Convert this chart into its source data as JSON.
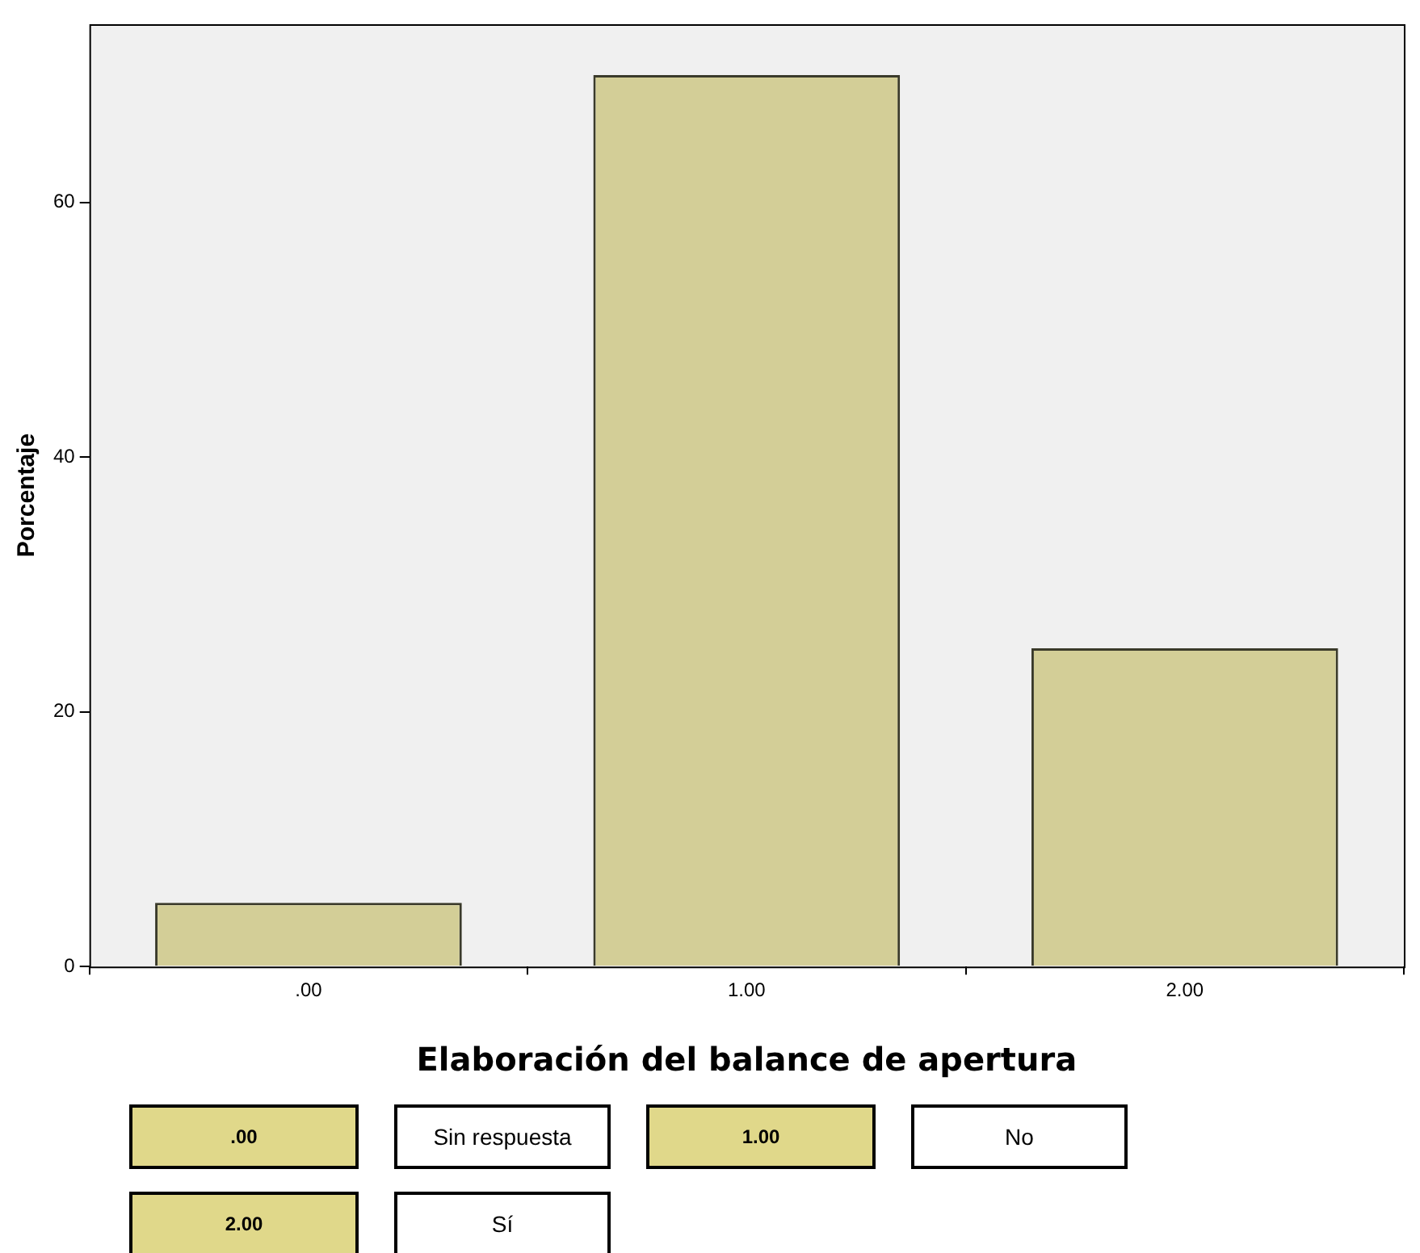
{
  "chart_data": {
    "type": "bar",
    "xlabel": "Elaboración del balance de apertura",
    "ylabel": "Porcentaje",
    "categories": [
      ".00",
      "1.00",
      "2.00"
    ],
    "values": [
      5,
      70,
      25
    ],
    "color": "#d3ce97",
    "ylim": [
      0,
      74
    ],
    "yticks": [
      0,
      20,
      40,
      60
    ],
    "grid": false,
    "legend": false,
    "annotations": [
      ".00",
      "Sin respuesta",
      "1.00",
      "No",
      "2.00",
      "Sí"
    ]
  }
}
